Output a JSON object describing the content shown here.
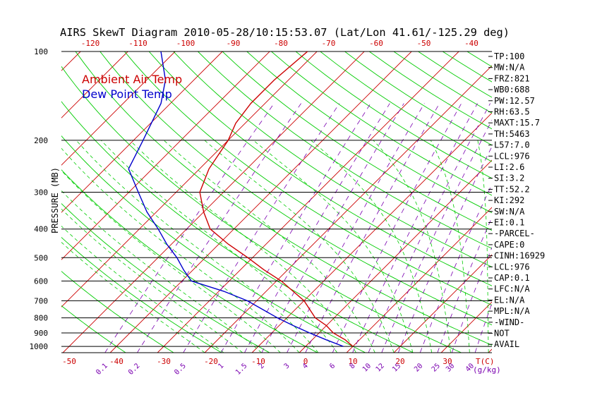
{
  "title": "AIRS SkewT Diagram 2010-05-28/10:15:53.07 (Lat/Lon 41.61/-125.29 deg)",
  "colors": {
    "isotherm": "#cc0000",
    "dry_adiabat": "#00cc00",
    "moist_adiabat": "#00cc00",
    "mixing_ratio": "#7a00b0",
    "isobar": "#000000",
    "temperature": "#cc0000",
    "dewpoint": "#0000cc"
  },
  "chart_data": {
    "type": "line",
    "diagram": "skew-T log-P",
    "title": "AIRS SkewT Diagram 2010-05-28/10:15:53.07 (Lat/Lon 41.61/-125.29 deg)",
    "ylabel": "PRESSURE (MB)",
    "xlabel": "T(C)",
    "mixing_ratio_label": "(g/kg)",
    "y_scale": "log",
    "ylim": [
      1050,
      100
    ],
    "pressure_ticks": [
      100,
      200,
      300,
      400,
      500,
      600,
      700,
      800,
      900,
      1000
    ],
    "bottom_temp_ticks": [
      -50,
      -40,
      -30,
      -20,
      -10,
      0,
      10,
      20,
      30
    ],
    "top_temp_ticks": [
      -120,
      -110,
      -100,
      -90,
      -80,
      -70,
      -60,
      -50,
      -40
    ],
    "mixing_ratio_labels": [
      "0.1",
      "0.2",
      "0.5",
      "1",
      "1.5",
      "2",
      "3",
      "4",
      "6",
      "8",
      "10",
      "12",
      "15",
      "20",
      "25",
      "30",
      "40"
    ],
    "legend": [
      {
        "label": "Ambient Air Temp",
        "color": "#cc0000"
      },
      {
        "label": "Dew Point Temp",
        "color": "#0000cc"
      }
    ],
    "legend_position": "top-left",
    "series": [
      {
        "name": "Ambient Air Temp",
        "points": [
          [
            1000,
            10
          ],
          [
            950,
            7
          ],
          [
            900,
            3
          ],
          [
            850,
            0
          ],
          [
            800,
            -4
          ],
          [
            700,
            -10
          ],
          [
            600,
            -19
          ],
          [
            550,
            -25
          ],
          [
            500,
            -31
          ],
          [
            450,
            -38
          ],
          [
            400,
            -45
          ],
          [
            350,
            -50
          ],
          [
            300,
            -55
          ],
          [
            250,
            -58
          ],
          [
            200,
            -60
          ],
          [
            175,
            -62
          ],
          [
            150,
            -63
          ],
          [
            125,
            -63
          ],
          [
            100,
            -62
          ]
        ]
      },
      {
        "name": "Dew Point Temp",
        "points": [
          [
            1000,
            8
          ],
          [
            950,
            3
          ],
          [
            900,
            -2
          ],
          [
            850,
            -7
          ],
          [
            800,
            -12
          ],
          [
            700,
            -22
          ],
          [
            650,
            -29
          ],
          [
            600,
            -38
          ],
          [
            550,
            -42
          ],
          [
            500,
            -46
          ],
          [
            450,
            -51
          ],
          [
            400,
            -56
          ],
          [
            350,
            -62
          ],
          [
            300,
            -68
          ],
          [
            250,
            -75
          ],
          [
            200,
            -78
          ],
          [
            150,
            -82
          ],
          [
            125,
            -86
          ],
          [
            110,
            -90
          ],
          [
            100,
            -93
          ]
        ]
      }
    ],
    "indices": [
      "TP:100",
      "MW:N/A",
      "FRZ:821",
      "WB0:688",
      "PW:12.57",
      "RH:63.5",
      "MAXT:15.7",
      "TH:5463",
      "L57:7.0",
      "LCL:976",
      "LI:2.6",
      "SI:3.2",
      "TT:52.2",
      "KI:292",
      "SW:N/A",
      "EI:0.1",
      "-PARCEL-",
      "CAPE:0",
      "CINH:16929",
      "LCL:976",
      "CAP:0.1",
      "LFC:N/A",
      "EL:N/A",
      "MPL:N/A",
      "-WIND-",
      "NOT",
      "AVAIL"
    ]
  }
}
